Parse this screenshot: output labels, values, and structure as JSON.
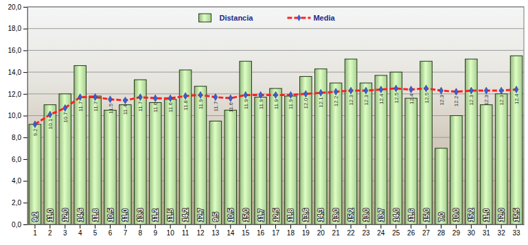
{
  "chart_data": {
    "type": "bar",
    "categories": [
      "1",
      "2",
      "3",
      "4",
      "5",
      "6",
      "7",
      "8",
      "9",
      "10",
      "11",
      "12",
      "13",
      "14",
      "15",
      "16",
      "17",
      "18",
      "19",
      "20",
      "21",
      "22",
      "23",
      "24",
      "25",
      "26",
      "27",
      "28",
      "29",
      "30",
      "31",
      "32",
      "33"
    ],
    "series": [
      {
        "name": "Distancia",
        "type": "bar",
        "color": "#b9e3a2",
        "values": [
          9.2,
          11.0,
          12.0,
          14.6,
          11.8,
          10.5,
          11.0,
          13.3,
          11.2,
          11.5,
          14.2,
          12.7,
          9.5,
          10.5,
          15.0,
          11.7,
          12.5,
          11.8,
          13.6,
          14.3,
          13.0,
          15.2,
          13.0,
          13.7,
          14.0,
          11.6,
          15.0,
          7.0,
          10.0,
          15.2,
          11.0,
          12.0,
          15.5
        ],
        "value_labels": [
          "9.2",
          "11.0",
          "12.0",
          "14.6",
          "11.8",
          "10.5",
          "11.0",
          "13.3",
          "11.2",
          "11.5",
          "14.2",
          "12.7",
          "9.5",
          "10.5",
          "15.0",
          "11.7",
          "12.5",
          "11.8",
          "13.6",
          "14.3",
          "13.0",
          "15.2",
          "13.0",
          "13.7",
          "14.0",
          "11.6",
          "15.0",
          "7.0",
          "10.0",
          "15.2",
          "11.0",
          "12.0",
          "15.5"
        ]
      },
      {
        "name": "Media",
        "type": "line",
        "color": "#ff2020",
        "marker": "diamond",
        "line_style": "dashed",
        "values": [
          9.2,
          10.1,
          10.7,
          11.7,
          11.7,
          11.5,
          11.4,
          11.7,
          11.6,
          11.6,
          11.8,
          11.9,
          11.7,
          11.6,
          11.9,
          11.9,
          11.9,
          11.9,
          12.0,
          12.1,
          12.2,
          12.3,
          12.3,
          12.4,
          12.5,
          12.4,
          12.5,
          12.3,
          12.2,
          12.3,
          12.3,
          12.3,
          12.4
        ],
        "value_labels": [
          "9.2",
          "10.1",
          "10.7",
          "11.7",
          "11.7",
          "11.5",
          "11.4",
          "11.7",
          "11.6",
          "11.6",
          "11.8",
          "11.9",
          "11.7",
          "11.6",
          "11.9",
          "11.9",
          "11.9",
          "11.9",
          "12.0",
          "12.1",
          "12.2",
          "12.3",
          "12.3",
          "12.4",
          "12.5",
          "12.4",
          "12.5",
          "12.3",
          "12.2",
          "12.3",
          "12.3",
          "12.3",
          "12.4"
        ]
      }
    ],
    "ylim": [
      0,
      20
    ],
    "yticks": [
      {
        "value": 0,
        "label": "0,0"
      },
      {
        "value": 2,
        "label": "2,0"
      },
      {
        "value": 4,
        "label": "4,0"
      },
      {
        "value": 6,
        "label": "6,0"
      },
      {
        "value": 8,
        "label": "8,0"
      },
      {
        "value": 10,
        "label": "10,0"
      },
      {
        "value": 12,
        "label": "12,0"
      },
      {
        "value": 14,
        "label": "14,0"
      },
      {
        "value": 16,
        "label": "16,0"
      },
      {
        "value": 18,
        "label": "18,0"
      },
      {
        "value": 20,
        "label": "20,0"
      }
    ],
    "grid": true,
    "legend": "top",
    "data_labels": true
  }
}
